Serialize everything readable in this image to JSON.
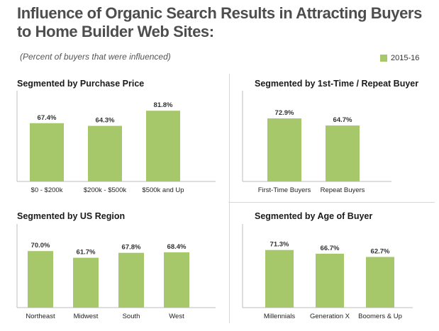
{
  "header": {
    "title_line1": "Influence of Organic Search Results in Attracting Buyers",
    "title_line2": "to Home Builder Web Sites:",
    "subtitle": "(Percent of buyers that were influenced)",
    "legend_label": "2015-16"
  },
  "colors": {
    "bar": "#a6c86a",
    "axis": "#bdbdbd",
    "text": "#222222"
  },
  "chart_data": [
    {
      "type": "bar",
      "title": "Segmented by Purchase Price",
      "categories": [
        "$0 - $200k",
        "$200k - $500k",
        "$500k and Up"
      ],
      "series": [
        {
          "name": "2015-16",
          "values": [
            67.4,
            64.3,
            81.8
          ]
        }
      ],
      "value_labels": [
        "67.4%",
        "64.3%",
        "81.8%"
      ],
      "ylim": [
        0,
        100
      ]
    },
    {
      "type": "bar",
      "title": "Segmented by 1st-Time / Repeat Buyer",
      "categories": [
        "First-Time Buyers",
        "Repeat Buyers"
      ],
      "series": [
        {
          "name": "2015-16",
          "values": [
            72.9,
            64.7
          ]
        }
      ],
      "value_labels": [
        "72.9%",
        "64.7%"
      ],
      "ylim": [
        0,
        100
      ]
    },
    {
      "type": "bar",
      "title": "Segmented by US Region",
      "categories": [
        "Northeast",
        "Midwest",
        "South",
        "West"
      ],
      "series": [
        {
          "name": "2015-16",
          "values": [
            70.0,
            61.7,
            67.8,
            68.4
          ]
        }
      ],
      "value_labels": [
        "70.0%",
        "61.7%",
        "67.8%",
        "68.4%"
      ],
      "ylim": [
        0,
        100
      ]
    },
    {
      "type": "bar",
      "title": "Segmented by Age of Buyer",
      "categories": [
        "Millennials",
        "Generation X",
        "Boomers & Up"
      ],
      "series": [
        {
          "name": "2015-16",
          "values": [
            71.3,
            66.7,
            62.7
          ]
        }
      ],
      "value_labels": [
        "71.3%",
        "66.7%",
        "62.7%"
      ],
      "ylim": [
        0,
        100
      ]
    }
  ]
}
